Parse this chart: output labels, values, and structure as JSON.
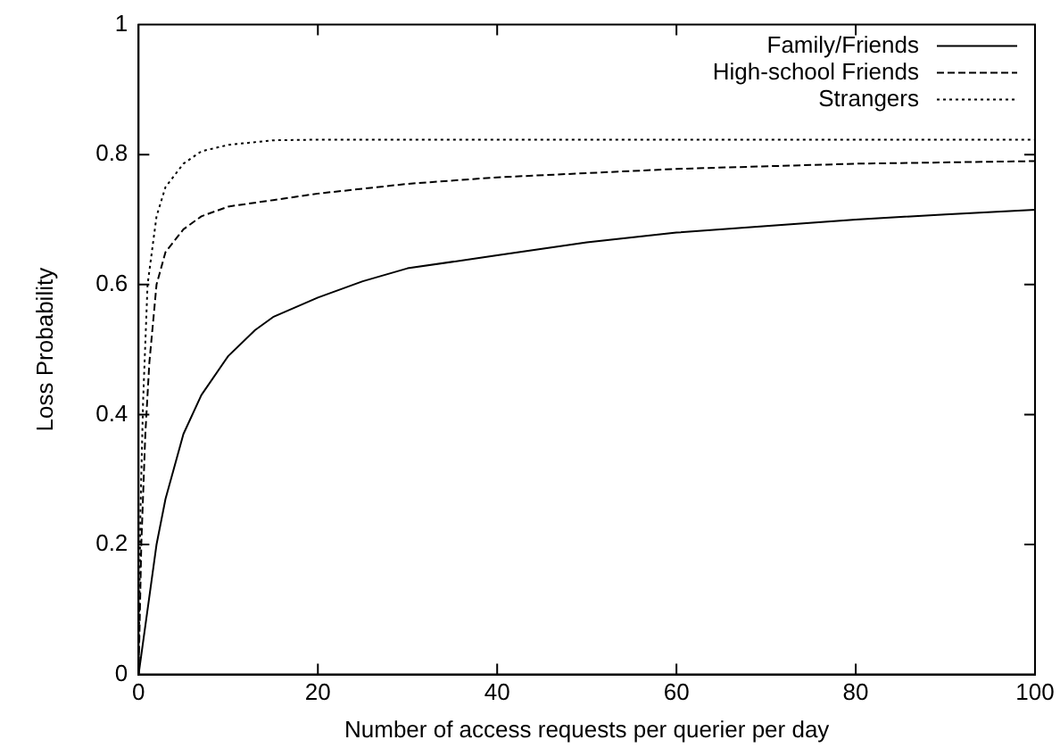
{
  "chart_data": {
    "type": "line",
    "xlabel": "Number of access requests per querier per day",
    "ylabel": "Loss Probability",
    "xlim": [
      0,
      100
    ],
    "xticks": [
      0,
      20,
      40,
      60,
      80,
      100
    ],
    "ylim": [
      0,
      1
    ],
    "yticks": [
      0,
      0.2,
      0.4,
      0.6,
      0.8,
      1
    ],
    "grid": false,
    "legend": "top right",
    "marker": "none",
    "series": [
      {
        "name": "Family/Friends",
        "color": "#000000",
        "line_style": "solid",
        "x": [
          0,
          1,
          2,
          3,
          5,
          7,
          10,
          13,
          15,
          20,
          25,
          30,
          40,
          50,
          60,
          70,
          80,
          90,
          100
        ],
        "values": [
          0,
          0.1,
          0.2,
          0.27,
          0.37,
          0.43,
          0.49,
          0.53,
          0.55,
          0.58,
          0.605,
          0.625,
          0.645,
          0.665,
          0.68,
          0.69,
          0.7,
          0.708,
          0.715
        ]
      },
      {
        "name": "High-school Friends",
        "color": "#000000",
        "line_style": "dashed",
        "x": [
          0,
          0.3,
          0.75,
          1.2,
          2,
          3,
          5,
          7,
          10,
          15,
          20,
          30,
          40,
          60,
          80,
          100
        ],
        "values": [
          0,
          0.2,
          0.37,
          0.48,
          0.6,
          0.65,
          0.685,
          0.705,
          0.72,
          0.73,
          0.74,
          0.755,
          0.765,
          0.778,
          0.786,
          0.79
        ]
      },
      {
        "name": "Strangers",
        "color": "#000000",
        "line_style": "dotted",
        "x": [
          0,
          0.2,
          0.5,
          1,
          2,
          3,
          5,
          7,
          10,
          15,
          20,
          40,
          60,
          80,
          100
        ],
        "values": [
          0,
          0.25,
          0.42,
          0.6,
          0.705,
          0.75,
          0.786,
          0.805,
          0.815,
          0.822,
          0.823,
          0.823,
          0.823,
          0.823,
          0.823
        ]
      }
    ]
  }
}
